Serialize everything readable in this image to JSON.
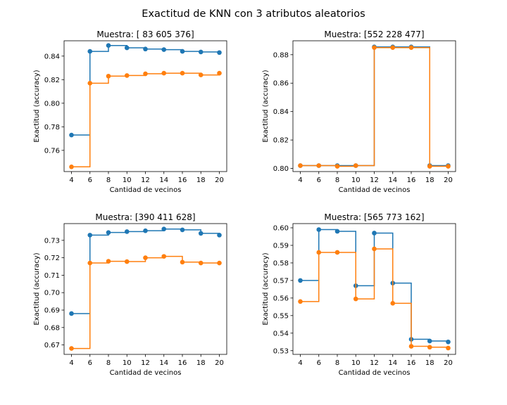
{
  "figure": {
    "suptitle": "Exactitud de KNN con 3 atributos aleatorios"
  },
  "colors": {
    "series_1": "#1f77b4",
    "series_2": "#ff7f0e"
  },
  "chart_data": [
    {
      "type": "line",
      "step": "post",
      "title": "Muestra: [ 83 605 376]",
      "xlabel": "Cantidad de vecinos",
      "ylabel": "Exactitud (accuracy)",
      "x": [
        4,
        6,
        8,
        10,
        12,
        14,
        16,
        18,
        20
      ],
      "xticks": [
        4,
        6,
        8,
        10,
        12,
        14,
        16,
        18,
        20
      ],
      "yticks": [
        0.76,
        0.78,
        0.8,
        0.82,
        0.84
      ],
      "ytick_labels": [
        "0.76",
        "0.78",
        "0.80",
        "0.82",
        "0.84"
      ],
      "xlim": [
        3.2,
        20.8
      ],
      "ylim": [
        0.742,
        0.853
      ],
      "series": [
        {
          "values": [
            0.773,
            0.844,
            0.849,
            0.847,
            0.846,
            0.8455,
            0.844,
            0.8435,
            0.843
          ]
        },
        {
          "values": [
            0.746,
            0.817,
            0.823,
            0.8235,
            0.825,
            0.8255,
            0.8255,
            0.824,
            0.8255
          ]
        }
      ]
    },
    {
      "type": "line",
      "step": "post",
      "title": "Muestra: [552 228 477]",
      "xlabel": "Cantidad de vecinos",
      "ylabel": "Exactitud (accuracy)",
      "x": [
        4,
        6,
        8,
        10,
        12,
        14,
        16,
        18,
        20
      ],
      "xticks": [
        4,
        6,
        8,
        10,
        12,
        14,
        16,
        18,
        20
      ],
      "yticks": [
        0.8,
        0.82,
        0.84,
        0.86,
        0.88
      ],
      "ytick_labels": [
        "0.80",
        "0.82",
        "0.84",
        "0.86",
        "0.88"
      ],
      "xlim": [
        3.2,
        20.8
      ],
      "ylim": [
        0.7978,
        0.8898
      ],
      "series": [
        {
          "values": [
            0.802,
            0.802,
            0.802,
            0.802,
            0.8855,
            0.8855,
            0.8855,
            0.802,
            0.802
          ]
        },
        {
          "values": [
            0.802,
            0.802,
            0.8015,
            0.802,
            0.885,
            0.885,
            0.885,
            0.8015,
            0.8015
          ]
        }
      ]
    },
    {
      "type": "line",
      "step": "post",
      "title": "Muestra: [390 411 628]",
      "xlabel": "Cantidad de vecinos",
      "ylabel": "Exactitud (accuracy)",
      "x": [
        4,
        6,
        8,
        10,
        12,
        14,
        16,
        18,
        20
      ],
      "xticks": [
        4,
        6,
        8,
        10,
        12,
        14,
        16,
        18,
        20
      ],
      "yticks": [
        0.67,
        0.68,
        0.69,
        0.7,
        0.71,
        0.72,
        0.73
      ],
      "ytick_labels": [
        "0.67",
        "0.68",
        "0.69",
        "0.70",
        "0.71",
        "0.72",
        "0.73"
      ],
      "xlim": [
        3.2,
        20.8
      ],
      "ylim": [
        0.6646,
        0.7396
      ],
      "series": [
        {
          "values": [
            0.688,
            0.733,
            0.7345,
            0.735,
            0.7355,
            0.7365,
            0.736,
            0.734,
            0.733
          ]
        },
        {
          "values": [
            0.668,
            0.717,
            0.718,
            0.7178,
            0.72,
            0.7208,
            0.7175,
            0.717,
            0.717
          ]
        }
      ]
    },
    {
      "type": "line",
      "step": "post",
      "title": "Muestra: [565 773 162]",
      "xlabel": "Cantidad de vecinos",
      "ylabel": "Exactitud (accuracy)",
      "x": [
        4,
        6,
        8,
        10,
        12,
        14,
        16,
        18,
        20
      ],
      "xticks": [
        4,
        6,
        8,
        10,
        12,
        14,
        16,
        18,
        20
      ],
      "yticks": [
        0.53,
        0.54,
        0.55,
        0.56,
        0.57,
        0.58,
        0.59,
        0.6
      ],
      "ytick_labels": [
        "0.53",
        "0.54",
        "0.55",
        "0.56",
        "0.57",
        "0.58",
        "0.59",
        "0.60"
      ],
      "xlim": [
        3.2,
        20.8
      ],
      "ylim": [
        0.5279,
        0.6024
      ],
      "series": [
        {
          "values": [
            0.57,
            0.599,
            0.598,
            0.567,
            0.597,
            0.5685,
            0.5365,
            0.5355,
            0.535
          ]
        },
        {
          "values": [
            0.558,
            0.586,
            0.586,
            0.5595,
            0.588,
            0.557,
            0.5325,
            0.532,
            0.5315
          ]
        }
      ]
    }
  ]
}
